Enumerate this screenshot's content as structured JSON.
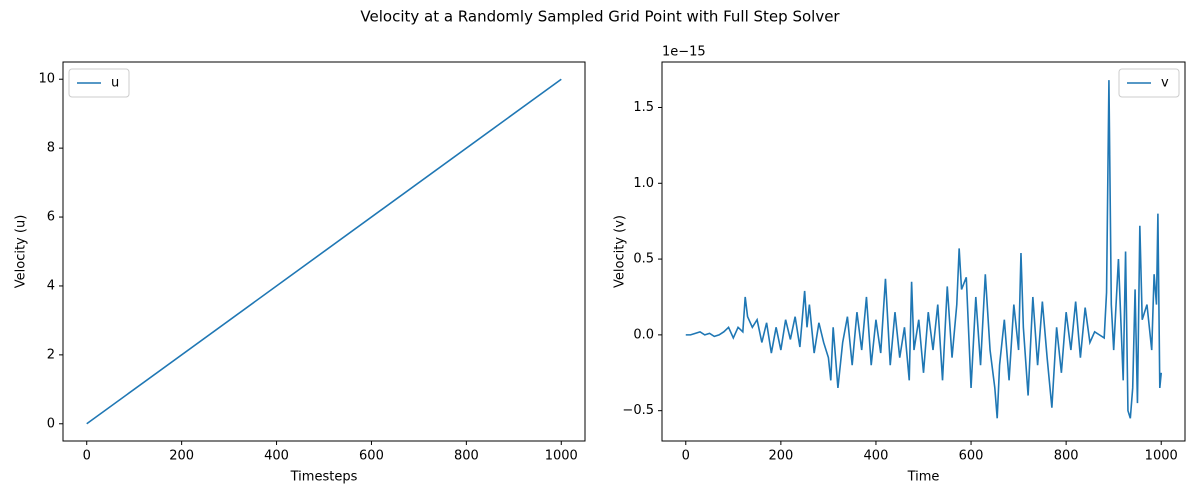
{
  "title": "Velocity at a Randomly Sampled Grid Point with Full Step Solver",
  "chart_data": [
    {
      "type": "line",
      "xlabel": "Timesteps",
      "ylabel": "Velocity (u)",
      "x": [
        0,
        1000
      ],
      "series": [
        {
          "name": "u",
          "color": "#1f77b4",
          "values": [
            0,
            10
          ]
        }
      ],
      "xlim": [
        -50,
        1050
      ],
      "ylim": [
        -0.5,
        10.5
      ],
      "xticks": [
        0,
        200,
        400,
        600,
        800,
        1000
      ],
      "yticks": [
        0,
        2,
        4,
        6,
        8,
        10
      ],
      "grid": false,
      "legend": "upper-left"
    },
    {
      "type": "line",
      "xlabel": "Time",
      "ylabel": "Velocity (v)",
      "y_offset_label": "1e−15",
      "x": [
        0,
        10,
        20,
        30,
        40,
        50,
        60,
        70,
        80,
        90,
        100,
        110,
        120,
        125,
        130,
        140,
        150,
        160,
        170,
        180,
        190,
        200,
        210,
        220,
        230,
        240,
        250,
        255,
        260,
        270,
        280,
        290,
        300,
        305,
        310,
        320,
        330,
        340,
        350,
        360,
        370,
        380,
        390,
        400,
        410,
        420,
        430,
        440,
        450,
        460,
        470,
        475,
        480,
        490,
        500,
        510,
        520,
        530,
        540,
        550,
        560,
        570,
        575,
        580,
        590,
        600,
        610,
        620,
        630,
        640,
        650,
        655,
        660,
        670,
        680,
        690,
        700,
        705,
        710,
        720,
        730,
        740,
        750,
        760,
        770,
        780,
        790,
        800,
        810,
        820,
        830,
        840,
        850,
        860,
        870,
        880,
        885,
        890,
        895,
        900,
        910,
        920,
        925,
        930,
        935,
        940,
        945,
        950,
        955,
        960,
        970,
        980,
        985,
        990,
        993,
        997,
        1000
      ],
      "series": [
        {
          "name": "v",
          "color": "#1f77b4",
          "values": [
            0,
            0,
            0.01,
            0.02,
            0,
            0.01,
            -0.01,
            0,
            0.02,
            0.05,
            -0.02,
            0.05,
            0.02,
            0.25,
            0.12,
            0.05,
            0.1,
            -0.05,
            0.08,
            -0.12,
            0.05,
            -0.1,
            0.1,
            -0.03,
            0.12,
            -0.08,
            0.29,
            0.05,
            0.2,
            -0.12,
            0.08,
            -0.05,
            -0.15,
            -0.3,
            0.05,
            -0.35,
            -0.05,
            0.12,
            -0.2,
            0.15,
            -0.1,
            0.25,
            -0.2,
            0.1,
            -0.12,
            0.37,
            -0.2,
            0.15,
            -0.15,
            0.05,
            -0.3,
            0.35,
            -0.1,
            0.1,
            -0.25,
            0.15,
            -0.1,
            0.2,
            -0.3,
            0.32,
            -0.15,
            0.2,
            0.57,
            0.3,
            0.38,
            -0.35,
            0.25,
            -0.2,
            0.4,
            -0.1,
            -0.35,
            -0.55,
            -0.2,
            0.1,
            -0.3,
            0.2,
            -0.1,
            0.54,
            0.05,
            -0.4,
            0.25,
            -0.2,
            0.22,
            -0.15,
            -0.48,
            0.05,
            -0.25,
            0.15,
            -0.1,
            0.22,
            -0.15,
            0.18,
            -0.05,
            0.02,
            0,
            -0.02,
            0.28,
            1.68,
            0.2,
            -0.1,
            0.5,
            -0.3,
            0.55,
            -0.5,
            -0.55,
            -0.35,
            0.3,
            -0.45,
            0.72,
            0.1,
            0.2,
            -0.1,
            0.4,
            0.2,
            0.8,
            -0.35,
            -0.25
          ]
        }
      ],
      "xlim": [
        -50,
        1050
      ],
      "ylim": [
        -0.7,
        1.8
      ],
      "xticks": [
        0,
        200,
        400,
        600,
        800,
        1000
      ],
      "yticks": [
        {
          "value": -0.5,
          "label": "−0.5"
        },
        {
          "value": 0,
          "label": "0.0"
        },
        {
          "value": 0.5,
          "label": "0.5"
        },
        {
          "value": 1,
          "label": "1.0"
        },
        {
          "value": 1.5,
          "label": "1.5"
        }
      ],
      "grid": false,
      "legend": "upper-right"
    }
  ]
}
